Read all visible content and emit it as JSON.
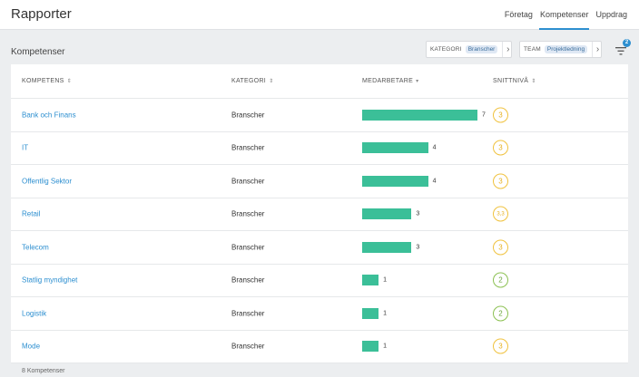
{
  "header": {
    "title": "Rapporter",
    "nav": [
      {
        "label": "Företag",
        "active": false
      },
      {
        "label": "Kompetenser",
        "active": true
      },
      {
        "label": "Uppdrag",
        "active": false
      }
    ]
  },
  "section": {
    "title": "Kompetenser",
    "filters": [
      {
        "label": "KATEGORI",
        "value": "Branscher"
      },
      {
        "label": "TEAM",
        "value": "Projektledning"
      }
    ],
    "filter_count": "2"
  },
  "table": {
    "columns": [
      "KOMPETENS",
      "KATEGORI",
      "MEDARBETARE",
      "SNITTNIVÅ"
    ],
    "rows": [
      {
        "name": "Bank och Finans",
        "category": "Branscher",
        "employees": "7",
        "level": "3",
        "level_color": "yellow"
      },
      {
        "name": "IT",
        "category": "Branscher",
        "employees": "4",
        "level": "3",
        "level_color": "yellow"
      },
      {
        "name": "Offentlig Sektor",
        "category": "Branscher",
        "employees": "4",
        "level": "3",
        "level_color": "yellow"
      },
      {
        "name": "Retail",
        "category": "Branscher",
        "employees": "3",
        "level": "3,3",
        "level_color": "yellow"
      },
      {
        "name": "Telecom",
        "category": "Branscher",
        "employees": "3",
        "level": "3",
        "level_color": "yellow"
      },
      {
        "name": "Statlig myndighet",
        "category": "Branscher",
        "employees": "1",
        "level": "2",
        "level_color": "green"
      },
      {
        "name": "Logistik",
        "category": "Branscher",
        "employees": "1",
        "level": "2",
        "level_color": "green"
      },
      {
        "name": "Mode",
        "category": "Branscher",
        "employees": "1",
        "level": "3",
        "level_color": "yellow"
      }
    ],
    "footer": "8 Kompetenser"
  },
  "colors": {
    "accent": "#2d8fd0",
    "bar": "#3bbf98",
    "level_yellow": "#f0c23e",
    "level_green": "#8cc152"
  }
}
